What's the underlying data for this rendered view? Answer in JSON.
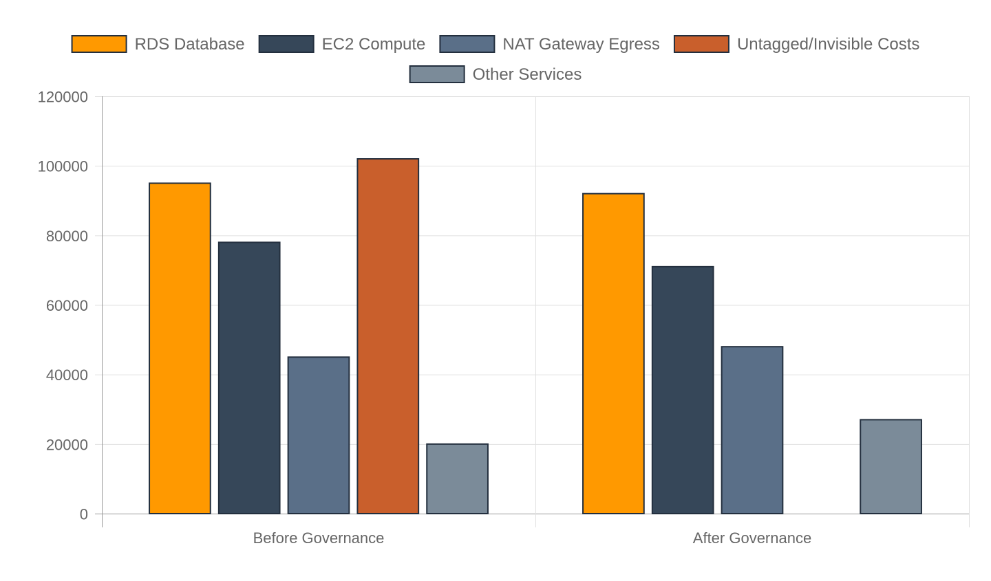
{
  "chart_data": {
    "type": "bar",
    "title": "",
    "xlabel": "",
    "ylabel": "",
    "categories": [
      "Before Governance",
      "After Governance"
    ],
    "ylim": [
      0,
      120000
    ],
    "yticks": [
      0,
      20000,
      40000,
      60000,
      80000,
      100000,
      120000
    ],
    "grid": true,
    "legend_position": "top",
    "series": [
      {
        "name": "RDS Database",
        "color": "#ff9900",
        "values": [
          95000,
          92000
        ]
      },
      {
        "name": "EC2 Compute",
        "color": "#364759",
        "values": [
          78000,
          71000
        ]
      },
      {
        "name": "NAT Gateway Egress",
        "color": "#5a6f88",
        "values": [
          45000,
          48000
        ]
      },
      {
        "name": "Untagged/Invisible Costs",
        "color": "#c95f2c",
        "values": [
          102000,
          0
        ]
      },
      {
        "name": "Other Services",
        "color": "#7b8b99",
        "values": [
          20000,
          27000
        ]
      }
    ],
    "border_color": "#232f3e"
  }
}
